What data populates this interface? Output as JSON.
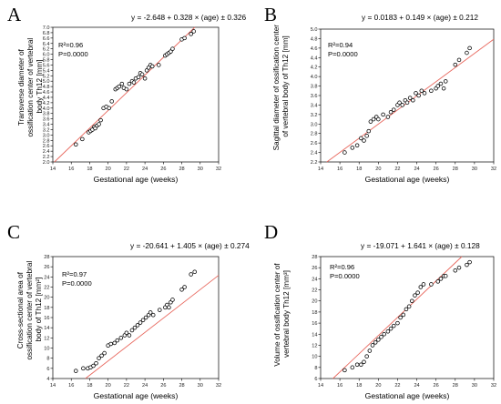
{
  "chart_data": [
    {
      "type": "scatter",
      "panel": "A",
      "equation": "y = -2.648 + 0.328 × (age) ± 0.326",
      "stats": [
        "R²=0.96",
        "P=0.0000"
      ],
      "xlabel": "Gestational age (weeks)",
      "ylabel": [
        "Transverse diameter of",
        "ossification center of vertebral",
        "body Th12 [mm]"
      ],
      "xlim": [
        14,
        32
      ],
      "ylim": [
        2.0,
        7.0
      ],
      "xticks": [
        14,
        16,
        18,
        20,
        22,
        24,
        26,
        28,
        30,
        32
      ],
      "yticks": [
        2.0,
        2.2,
        2.4,
        2.6,
        2.8,
        3.0,
        3.2,
        3.4,
        3.6,
        3.8,
        4.0,
        4.2,
        4.4,
        4.6,
        4.8,
        5.0,
        5.2,
        5.4,
        5.6,
        5.8,
        6.0,
        6.2,
        6.4,
        6.6,
        6.8,
        7.0
      ],
      "ytick_decimals": 1,
      "fit": {
        "intercept": -2.648,
        "slope": 0.328
      },
      "x": [
        16.5,
        17.2,
        17.9,
        18.1,
        18.3,
        18.5,
        18.6,
        18.8,
        19.0,
        19.2,
        19.5,
        19.8,
        20.1,
        20.4,
        20.8,
        21.0,
        21.2,
        21.5,
        21.7,
        22.0,
        22.3,
        22.6,
        22.8,
        23.0,
        23.3,
        23.5,
        23.7,
        24.0,
        24.2,
        24.4,
        24.6,
        24.8,
        25.5,
        26.2,
        26.4,
        26.6,
        26.8,
        27.0,
        28.0,
        28.3,
        29.0,
        29.3
      ],
      "y": [
        2.65,
        2.85,
        3.1,
        3.15,
        3.2,
        3.3,
        3.25,
        3.35,
        3.4,
        3.55,
        4.0,
        4.05,
        4.0,
        4.25,
        4.7,
        4.75,
        4.8,
        4.9,
        4.75,
        4.7,
        4.9,
        5.0,
        4.95,
        5.1,
        5.15,
        5.3,
        5.25,
        5.1,
        5.4,
        5.5,
        5.6,
        5.55,
        5.6,
        5.95,
        6.0,
        6.05,
        6.1,
        6.2,
        6.55,
        6.6,
        6.75,
        6.85
      ]
    },
    {
      "type": "scatter",
      "panel": "B",
      "equation": "y = 0.0183 + 0.149 × (age) ± 0.212",
      "stats": [
        "R²=0.94",
        "P=0.0000"
      ],
      "xlabel": "Gestational age (weeks)",
      "ylabel": [
        "Sagittal diameter of ossification center",
        "of vertebral body of Th12 [mm]"
      ],
      "xlim": [
        14,
        32
      ],
      "ylim": [
        2.2,
        5.0
      ],
      "xticks": [
        14,
        16,
        18,
        20,
        22,
        24,
        26,
        28,
        30,
        32
      ],
      "yticks": [
        2.2,
        2.4,
        2.6,
        2.8,
        3.0,
        3.2,
        3.4,
        3.6,
        3.8,
        4.0,
        4.2,
        4.4,
        4.6,
        4.8,
        5.0
      ],
      "ytick_decimals": 1,
      "fit": {
        "intercept": 0.0183,
        "slope": 0.149
      },
      "x": [
        16.5,
        17.3,
        17.8,
        18.2,
        18.5,
        18.8,
        19.0,
        19.2,
        19.5,
        19.8,
        20.0,
        20.5,
        21.0,
        21.3,
        21.6,
        22.0,
        22.2,
        22.5,
        22.8,
        23.0,
        23.3,
        23.6,
        23.9,
        24.2,
        24.5,
        24.8,
        25.5,
        26.0,
        26.2,
        26.5,
        26.8,
        27.0,
        28.0,
        28.4,
        29.2,
        29.5
      ],
      "y": [
        2.4,
        2.5,
        2.55,
        2.7,
        2.65,
        2.75,
        2.85,
        3.05,
        3.1,
        3.15,
        3.1,
        3.2,
        3.15,
        3.25,
        3.3,
        3.4,
        3.45,
        3.4,
        3.5,
        3.45,
        3.55,
        3.5,
        3.65,
        3.6,
        3.7,
        3.65,
        3.7,
        3.75,
        3.8,
        3.85,
        3.75,
        3.9,
        4.25,
        4.35,
        4.5,
        4.6
      ]
    },
    {
      "type": "scatter",
      "panel": "C",
      "equation": "y = -20.641 + 1.405 × (age) ± 0.274",
      "stats": [
        "R²=0.97",
        "P=0.0000"
      ],
      "xlabel": "Gestational age (weeks)",
      "ylabel": [
        "Cross-sectional area of",
        "ossification center of vertebral",
        "body of Th12 [mm²]"
      ],
      "xlim": [
        14,
        32
      ],
      "ylim": [
        4,
        28
      ],
      "xticks": [
        14,
        16,
        18,
        20,
        22,
        24,
        26,
        28,
        30,
        32
      ],
      "yticks": [
        4,
        6,
        8,
        10,
        12,
        14,
        16,
        18,
        20,
        22,
        24,
        26,
        28
      ],
      "ytick_decimals": 0,
      "fit": {
        "intercept": -20.641,
        "slope": 1.405
      },
      "x": [
        16.5,
        17.3,
        17.8,
        18.1,
        18.4,
        18.7,
        19.0,
        19.3,
        19.6,
        20.0,
        20.3,
        20.7,
        21.0,
        21.4,
        21.8,
        22.0,
        22.3,
        22.6,
        22.9,
        23.2,
        23.5,
        23.8,
        24.1,
        24.4,
        24.6,
        24.9,
        25.6,
        26.2,
        26.4,
        26.6,
        26.8,
        27.0,
        28.0,
        28.3,
        29.0,
        29.4
      ],
      "y": [
        5.5,
        6.0,
        6.0,
        6.2,
        6.5,
        7.0,
        8.0,
        8.5,
        9.0,
        10.5,
        10.8,
        11.0,
        11.5,
        12.0,
        12.5,
        13.0,
        12.5,
        13.5,
        14.0,
        14.5,
        15.0,
        15.5,
        16.0,
        16.5,
        17.0,
        16.5,
        17.5,
        18.0,
        18.5,
        18.0,
        19.0,
        19.5,
        21.5,
        22.0,
        24.5,
        25.0
      ]
    },
    {
      "type": "scatter",
      "panel": "D",
      "equation": "y = -19.071 + 1.641 × (age) ± 0.128",
      "stats": [
        "R²=0.96",
        "P=0.0000"
      ],
      "xlabel": "Gestational age (weeks)",
      "ylabel": [
        "Volume of ossification center of",
        "vertebral body Th12 [mm³]"
      ],
      "xlim": [
        14,
        32
      ],
      "ylim": [
        6,
        28
      ],
      "xticks": [
        14,
        16,
        18,
        20,
        22,
        24,
        26,
        28,
        30,
        32
      ],
      "yticks": [
        6,
        8,
        10,
        12,
        14,
        16,
        18,
        20,
        22,
        24,
        26,
        28
      ],
      "ytick_decimals": 0,
      "fit": {
        "intercept": -19.071,
        "slope": 1.641
      },
      "x": [
        16.5,
        17.3,
        17.8,
        18.2,
        18.5,
        18.8,
        19.1,
        19.4,
        19.7,
        20.0,
        20.3,
        20.6,
        21.0,
        21.3,
        21.6,
        22.0,
        22.3,
        22.6,
        22.9,
        23.2,
        23.5,
        23.8,
        24.1,
        24.4,
        24.7,
        25.5,
        26.2,
        26.5,
        26.8,
        27.0,
        28.0,
        28.4,
        29.2,
        29.5
      ],
      "y": [
        7.5,
        8.0,
        8.5,
        8.5,
        9.0,
        10.0,
        11.0,
        12.0,
        12.5,
        13.0,
        13.5,
        14.0,
        14.5,
        15.0,
        15.5,
        16.0,
        17.0,
        17.5,
        18.5,
        19.0,
        20.0,
        21.0,
        21.5,
        22.5,
        23.0,
        23.0,
        23.5,
        24.0,
        24.5,
        24.5,
        25.5,
        26.0,
        26.5,
        27.0
      ]
    }
  ]
}
